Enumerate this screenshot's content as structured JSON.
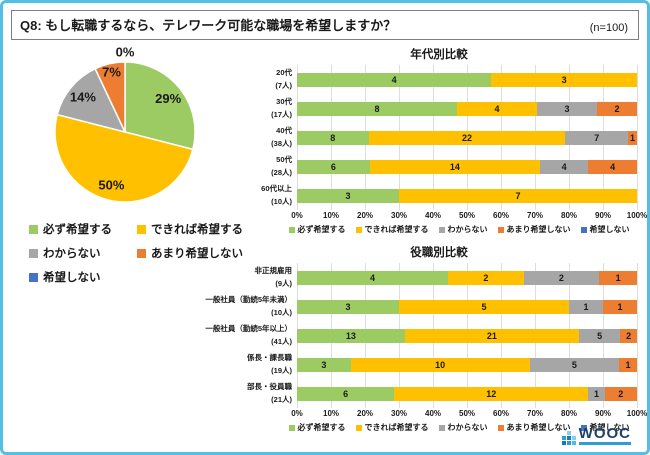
{
  "header": {
    "title": "Q8: もし転職するなら、テレワーク可能な職場を希望しますか？",
    "sample": "(n=100)"
  },
  "colors": {
    "green": "#9DCB63",
    "yellow": "#FFC000",
    "gray": "#A6A6A6",
    "orange": "#ED7D31",
    "blue": "#4472C4",
    "border_blue": "#54BEE4",
    "gridline": "#DEDEDE"
  },
  "legend": [
    "必ず希望する",
    "できれば希望する",
    "わからない",
    "あまり希望しない",
    "希望しない"
  ],
  "chart_data": [
    {
      "type": "pie",
      "title": "",
      "labels": [
        "必ず希望する",
        "できれば希望する",
        "わからない",
        "あまり希望しない",
        "希望しない"
      ],
      "values": [
        29,
        50,
        14,
        7,
        0
      ],
      "value_labels": [
        "29%",
        "50%",
        "14%",
        "7%",
        "0%"
      ],
      "colors": [
        "#9DCB63",
        "#FFC000",
        "#A6A6A6",
        "#ED7D31",
        "#4472C4"
      ],
      "start_angle": "top",
      "direction": "clockwise",
      "legend_position": "bottom-left"
    },
    {
      "type": "bar",
      "stacked": true,
      "orientation": "horizontal",
      "title": "年代別比較",
      "categories": [
        "20代",
        "30代",
        "40代",
        "50代",
        "60代以上"
      ],
      "category_counts": [
        "(7人)",
        "(17人)",
        "(38人)",
        "(28人)",
        "(10人)"
      ],
      "series": [
        {
          "name": "必ず希望する",
          "values": [
            4,
            8,
            8,
            6,
            3
          ]
        },
        {
          "name": "できれば希望する",
          "values": [
            3,
            4,
            22,
            14,
            7
          ]
        },
        {
          "name": "わからない",
          "values": [
            0,
            3,
            7,
            4,
            0
          ]
        },
        {
          "name": "あまり希望しない",
          "values": [
            0,
            2,
            1,
            4,
            0
          ]
        },
        {
          "name": "希望しない",
          "values": [
            0,
            0,
            0,
            0,
            0
          ]
        }
      ],
      "series_colors": [
        "#9DCB63",
        "#FFC000",
        "#A6A6A6",
        "#ED7D31",
        "#4472C4"
      ],
      "x_ticks": [
        "0%",
        "10%",
        "20%",
        "30%",
        "40%",
        "50%",
        "60%",
        "70%",
        "80%",
        "90%",
        "100%"
      ],
      "xlim": [
        0,
        100
      ],
      "grid": true,
      "legend_position": "bottom"
    },
    {
      "type": "bar",
      "stacked": true,
      "orientation": "horizontal",
      "title": "役職別比較",
      "categories": [
        "非正規雇用",
        "一般社員（勤続5年未満）",
        "一般社員（勤続5年以上）",
        "係長・課長職",
        "部長・役員職"
      ],
      "category_counts": [
        "(9人)",
        "(10人)",
        "(41人)",
        "(19人)",
        "(21人)"
      ],
      "series": [
        {
          "name": "必ず希望する",
          "values": [
            4,
            3,
            13,
            3,
            6
          ]
        },
        {
          "name": "できれば希望する",
          "values": [
            2,
            5,
            21,
            10,
            12
          ]
        },
        {
          "name": "わからない",
          "values": [
            2,
            1,
            5,
            5,
            1
          ]
        },
        {
          "name": "あまり希望しない",
          "values": [
            1,
            1,
            2,
            1,
            2
          ]
        },
        {
          "name": "希望しない",
          "values": [
            0,
            0,
            0,
            0,
            0
          ]
        }
      ],
      "series_colors": [
        "#9DCB63",
        "#FFC000",
        "#A6A6A6",
        "#ED7D31",
        "#4472C4"
      ],
      "x_ticks": [
        "0%",
        "10%",
        "20%",
        "30%",
        "40%",
        "50%",
        "60%",
        "70%",
        "80%",
        "90%",
        "100%"
      ],
      "xlim": [
        0,
        100
      ],
      "grid": true,
      "legend_position": "bottom"
    }
  ],
  "footer": {
    "logo_text": "WOOC"
  }
}
